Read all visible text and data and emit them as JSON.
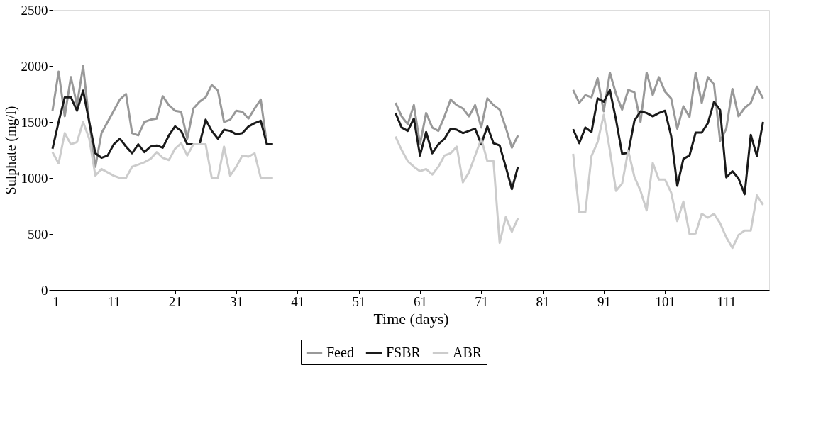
{
  "chart_data": {
    "type": "line",
    "xlabel": "Time (days)",
    "ylabel": "Sulphate (mg/l)",
    "x": [
      1,
      2,
      3,
      4,
      5,
      6,
      7,
      8,
      9,
      10,
      11,
      12,
      13,
      14,
      15,
      16,
      17,
      18,
      19,
      20,
      21,
      22,
      23,
      24,
      25,
      26,
      27,
      28,
      29,
      30,
      31,
      32,
      33,
      34,
      35,
      36,
      37,
      47,
      57,
      58,
      59,
      60,
      61,
      62,
      63,
      64,
      65,
      66,
      67,
      68,
      69,
      70,
      71,
      72,
      73,
      74,
      75,
      76,
      77,
      82,
      86,
      87,
      88,
      89,
      90,
      91,
      92,
      93,
      94,
      95,
      96,
      97,
      98,
      99,
      100,
      101,
      102,
      103,
      104,
      105,
      106,
      107,
      108,
      109,
      110,
      111,
      112,
      113,
      114,
      115,
      116,
      117
    ],
    "xlim": [
      1,
      118
    ],
    "xticks": [
      1,
      11,
      21,
      31,
      41,
      51,
      61,
      71,
      81,
      91,
      101,
      111
    ],
    "ylim": [
      0,
      2500
    ],
    "yticks": [
      0,
      500,
      1000,
      1500,
      2000,
      2500
    ],
    "grid": false,
    "legend": "bottom",
    "marker": "none",
    "line_style": "solid",
    "series": [
      {
        "name": "Feed",
        "color": "#999999",
        "values": [
          1600,
          1950,
          1550,
          1900,
          1650,
          2000,
          1500,
          1100,
          1400,
          1500,
          1600,
          1700,
          1750,
          1400,
          1380,
          1500,
          1520,
          1530,
          1730,
          1650,
          1600,
          1590,
          1350,
          1620,
          1680,
          1720,
          1830,
          1780,
          1500,
          1520,
          1600,
          1590,
          1530,
          1620,
          1700,
          1300,
          null,
          null,
          1670,
          1550,
          1480,
          1650,
          1300,
          1580,
          1450,
          1420,
          1550,
          1700,
          1650,
          1620,
          1550,
          1650,
          1450,
          1710,
          1650,
          1610,
          1450,
          1270,
          1380,
          null,
          1785,
          1670,
          1740,
          1720,
          1890,
          1595,
          1940,
          1750,
          1610,
          1785,
          1765,
          1500,
          1940,
          1740,
          1900,
          1770,
          1710,
          1440,
          1640,
          1545,
          1940,
          1670,
          1900,
          1835,
          1330,
          1440,
          1795,
          1550,
          1625,
          1670,
          1815,
          1710
        ]
      },
      {
        "name": "FSBR",
        "color": "#1a1a1a",
        "values": [
          1260,
          1500,
          1720,
          1720,
          1600,
          1780,
          1500,
          1220,
          1180,
          1200,
          1300,
          1350,
          1280,
          1220,
          1300,
          1230,
          1280,
          1290,
          1270,
          1380,
          1460,
          1420,
          1300,
          1300,
          1300,
          1520,
          1420,
          1350,
          1430,
          1420,
          1390,
          1400,
          1460,
          1490,
          1510,
          1300,
          1300,
          null,
          1580,
          1450,
          1420,
          1530,
          1200,
          1410,
          1220,
          1300,
          1350,
          1440,
          1430,
          1400,
          1420,
          1440,
          1300,
          1460,
          1310,
          1290,
          1100,
          900,
          1100,
          null,
          1435,
          1310,
          1450,
          1410,
          1710,
          1680,
          1785,
          1520,
          1215,
          1225,
          1510,
          1595,
          1580,
          1550,
          1580,
          1600,
          1375,
          930,
          1170,
          1200,
          1405,
          1405,
          1490,
          1680,
          1605,
          1005,
          1060,
          995,
          855,
          1385,
          1195,
          1500
        ]
      },
      {
        "name": "ABR",
        "color": "#cccccc",
        "values": [
          1230,
          1130,
          1400,
          1300,
          1320,
          1500,
          1350,
          1020,
          1080,
          1050,
          1020,
          1000,
          1000,
          1100,
          1120,
          1140,
          1170,
          1230,
          1180,
          1160,
          1260,
          1310,
          1200,
          1300,
          1300,
          1300,
          1000,
          1000,
          1280,
          1020,
          1100,
          1200,
          1190,
          1220,
          1000,
          1000,
          1000,
          null,
          1370,
          1250,
          1150,
          1100,
          1060,
          1080,
          1030,
          1100,
          1200,
          1220,
          1280,
          960,
          1050,
          1200,
          1350,
          1150,
          1150,
          420,
          650,
          520,
          640,
          null,
          1215,
          695,
          695,
          1195,
          1320,
          1565,
          1245,
          885,
          950,
          1245,
          1010,
          885,
          710,
          1135,
          985,
          985,
          870,
          615,
          790,
          500,
          505,
          680,
          645,
          680,
          595,
          470,
          375,
          490,
          530,
          530,
          845,
          760
        ]
      }
    ]
  }
}
